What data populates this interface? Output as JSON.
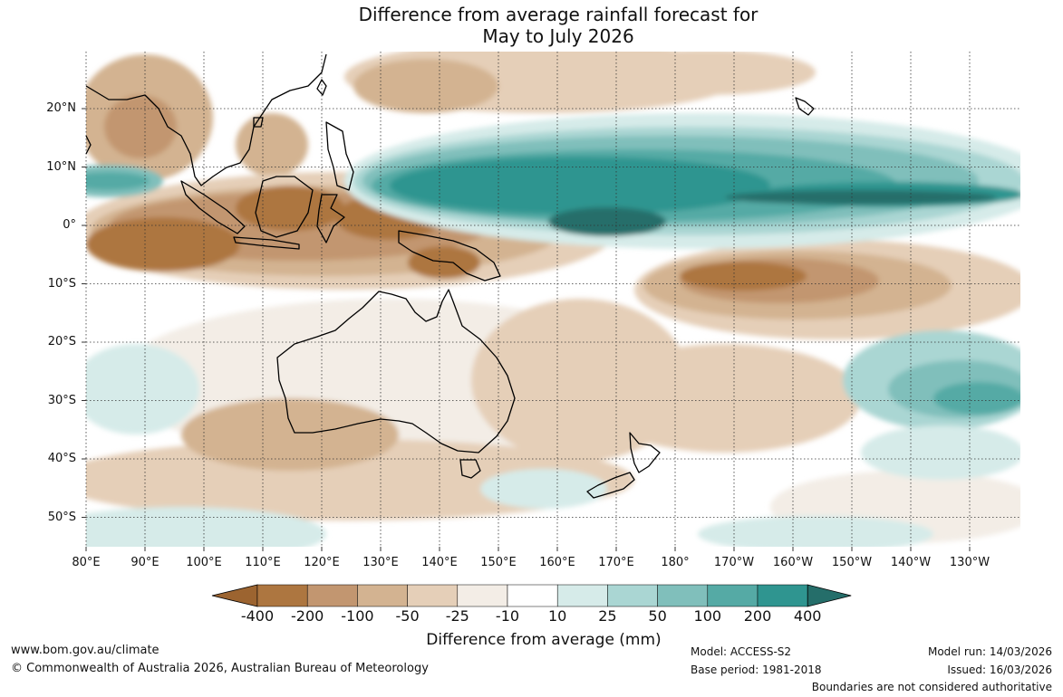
{
  "title": {
    "line1": "Difference from average rainfall forecast for",
    "line2": "May to July 2026"
  },
  "axes": {
    "lat_labels": [
      "20°N",
      "10°N",
      "0°",
      "10°S",
      "20°S",
      "30°S",
      "40°S",
      "50°S"
    ],
    "lat_values": [
      20,
      10,
      0,
      -10,
      -20,
      -30,
      -40,
      -50
    ],
    "lon_labels": [
      "80°E",
      "90°E",
      "100°E",
      "110°E",
      "120°E",
      "130°E",
      "140°E",
      "150°E",
      "160°E",
      "170°E",
      "180°",
      "170°W",
      "160°W",
      "150°W",
      "140°W",
      "130°W"
    ],
    "lon_values": [
      80,
      90,
      100,
      110,
      120,
      130,
      140,
      150,
      160,
      170,
      180,
      190,
      200,
      210,
      220,
      230
    ]
  },
  "legend": {
    "title": "Difference from average (mm)",
    "tick_labels": [
      "-400",
      "-200",
      "-100",
      "-50",
      "-25",
      "-10",
      "10",
      "25",
      "50",
      "100",
      "200",
      "400"
    ],
    "colors": [
      "#9c6430",
      "#ad7640",
      "#c29670",
      "#d3b391",
      "#e5cfb8",
      "#f3ede6",
      "#ffffff",
      "#d6ebe9",
      "#aad6d3",
      "#80bfbb",
      "#55aaa5",
      "#2f9590",
      "#256e6a"
    ]
  },
  "footer": {
    "website": "www.bom.gov.au/climate",
    "copyright": "© Commonwealth of Australia 2026, Australian Bureau of Meteorology",
    "model": "Model: ACCESS-S2",
    "base_period": "Base period: 1981-2018",
    "model_run": "Model run: 14/03/2026",
    "issued": "Issued: 16/03/2026",
    "disclaimer": "Boundaries are not considered authoritative"
  }
}
